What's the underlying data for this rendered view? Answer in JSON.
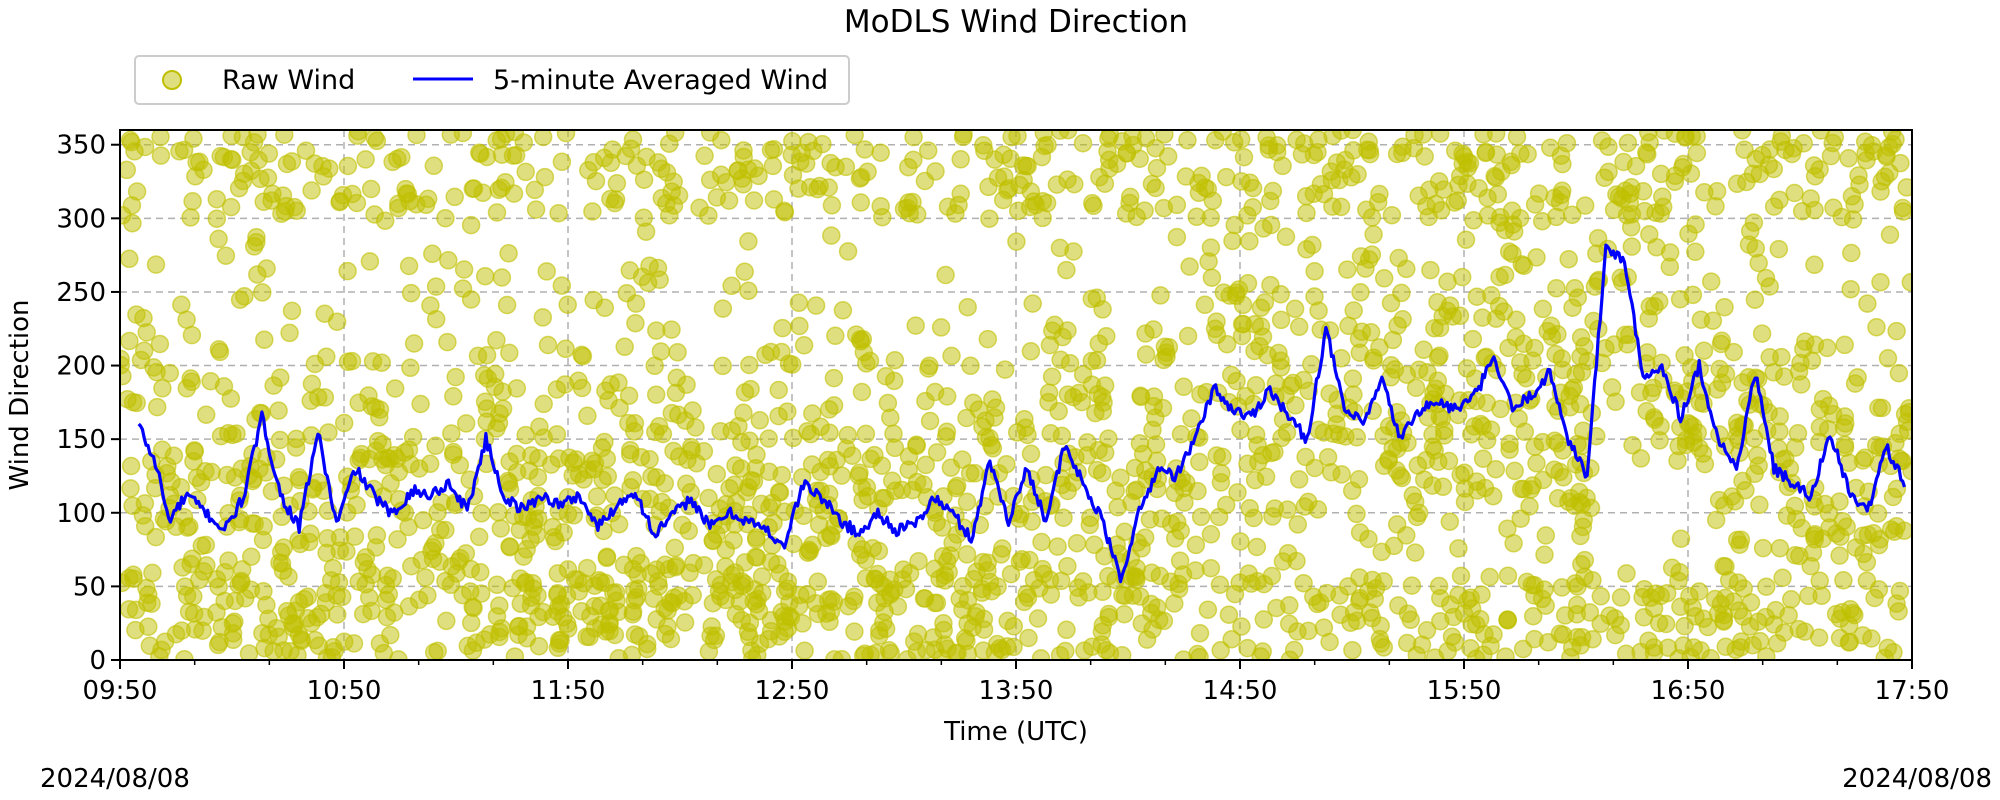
{
  "chart_data": {
    "type": "scatter",
    "title": "MoDLS Wind Direction",
    "xlabel": "Time (UTC)",
    "ylabel": "Wind Direction",
    "date_left": "2024/08/08",
    "date_right": "2024/08/08",
    "x_range": [
      "09:50",
      "17:50"
    ],
    "x_ticks": [
      "09:50",
      "10:50",
      "11:50",
      "12:50",
      "13:50",
      "14:50",
      "15:50",
      "16:50",
      "17:50"
    ],
    "ylim": [
      0,
      360
    ],
    "y_ticks": [
      0,
      50,
      100,
      150,
      200,
      250,
      300,
      350
    ],
    "grid": true,
    "legend_position": "top-left, above plot",
    "legend": [
      {
        "label": "Raw Wind",
        "marker": "circle",
        "color": "#bfbf00"
      },
      {
        "label": "5-minute Averaged Wind",
        "marker": "line",
        "color": "#0000ff"
      }
    ],
    "colors": {
      "raw": "#bfbf00",
      "avg": "#0000ff",
      "grid": "#b0b0b0"
    },
    "series": [
      {
        "name": "5-minute Averaged Wind",
        "type": "line",
        "points": [
          [
            "09:55",
            160
          ],
          [
            "10:00",
            130
          ],
          [
            "10:03",
            95
          ],
          [
            "10:08",
            112
          ],
          [
            "10:13",
            100
          ],
          [
            "10:18",
            88
          ],
          [
            "10:23",
            110
          ],
          [
            "10:28",
            165
          ],
          [
            "10:33",
            112
          ],
          [
            "10:38",
            90
          ],
          [
            "10:43",
            155
          ],
          [
            "10:48",
            92
          ],
          [
            "10:53",
            130
          ],
          [
            "10:58",
            112
          ],
          [
            "11:03",
            98
          ],
          [
            "11:08",
            115
          ],
          [
            "11:13",
            112
          ],
          [
            "11:18",
            120
          ],
          [
            "11:23",
            102
          ],
          [
            "11:28",
            150
          ],
          [
            "11:33",
            110
          ],
          [
            "11:38",
            102
          ],
          [
            "11:43",
            112
          ],
          [
            "11:48",
            105
          ],
          [
            "11:53",
            112
          ],
          [
            "11:58",
            90
          ],
          [
            "12:03",
            105
          ],
          [
            "12:08",
            115
          ],
          [
            "12:13",
            85
          ],
          [
            "12:18",
            98
          ],
          [
            "12:23",
            110
          ],
          [
            "12:28",
            90
          ],
          [
            "12:33",
            100
          ],
          [
            "12:38",
            95
          ],
          [
            "12:43",
            88
          ],
          [
            "12:48",
            78
          ],
          [
            "12:53",
            120
          ],
          [
            "12:58",
            110
          ],
          [
            "13:03",
            95
          ],
          [
            "13:08",
            85
          ],
          [
            "13:13",
            100
          ],
          [
            "13:18",
            88
          ],
          [
            "13:23",
            92
          ],
          [
            "13:28",
            110
          ],
          [
            "13:33",
            100
          ],
          [
            "13:38",
            82
          ],
          [
            "13:43",
            135
          ],
          [
            "13:48",
            95
          ],
          [
            "13:53",
            130
          ],
          [
            "13:58",
            95
          ],
          [
            "14:03",
            145
          ],
          [
            "14:08",
            120
          ],
          [
            "14:13",
            95
          ],
          [
            "14:18",
            55
          ],
          [
            "14:23",
            100
          ],
          [
            "14:28",
            130
          ],
          [
            "14:33",
            125
          ],
          [
            "14:38",
            150
          ],
          [
            "14:43",
            185
          ],
          [
            "14:48",
            170
          ],
          [
            "14:53",
            165
          ],
          [
            "14:58",
            185
          ],
          [
            "15:03",
            165
          ],
          [
            "15:08",
            150
          ],
          [
            "15:13",
            225
          ],
          [
            "15:18",
            170
          ],
          [
            "15:23",
            160
          ],
          [
            "15:28",
            190
          ],
          [
            "15:33",
            150
          ],
          [
            "15:38",
            170
          ],
          [
            "15:43",
            175
          ],
          [
            "15:48",
            170
          ],
          [
            "15:53",
            180
          ],
          [
            "15:58",
            205
          ],
          [
            "16:03",
            170
          ],
          [
            "16:08",
            180
          ],
          [
            "16:13",
            195
          ],
          [
            "16:18",
            150
          ],
          [
            "16:23",
            125
          ],
          [
            "16:28",
            280
          ],
          [
            "16:33",
            272
          ],
          [
            "16:38",
            190
          ],
          [
            "16:43",
            200
          ],
          [
            "16:48",
            165
          ],
          [
            "16:53",
            200
          ],
          [
            "16:58",
            150
          ],
          [
            "17:03",
            130
          ],
          [
            "17:08",
            195
          ],
          [
            "17:13",
            130
          ],
          [
            "17:18",
            120
          ],
          [
            "17:23",
            110
          ],
          [
            "17:28",
            155
          ],
          [
            "17:33",
            115
          ],
          [
            "17:38",
            100
          ],
          [
            "17:43",
            145
          ],
          [
            "17:48",
            120
          ]
        ]
      },
      {
        "name": "Raw Wind",
        "type": "scatter",
        "note_density": "dense points spanning 0-360 across the whole period"
      }
    ]
  }
}
